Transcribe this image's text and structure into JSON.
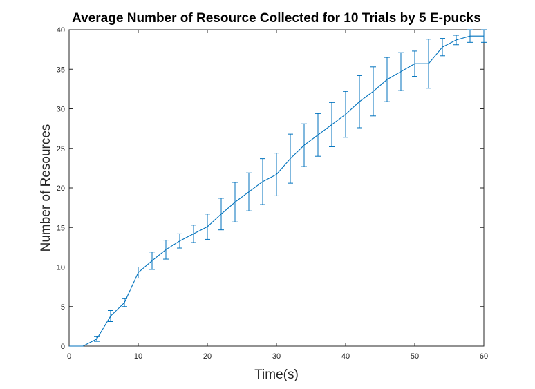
{
  "chart_data": {
    "type": "line",
    "title": "Average Number of Resource Collected for 10 Trials by 5 E-pucks",
    "xlabel": "Time(s)",
    "ylabel": "Number of Resources",
    "xlim": [
      0,
      60
    ],
    "ylim": [
      0,
      40
    ],
    "xticks": [
      0,
      10,
      20,
      30,
      40,
      50,
      60
    ],
    "yticks": [
      0,
      5,
      10,
      15,
      20,
      25,
      30,
      35,
      40
    ],
    "grid": false,
    "error_bars": true,
    "series": [
      {
        "color": "#0072BD",
        "x": [
          0,
          2,
          4,
          6,
          8,
          10,
          12,
          14,
          16,
          18,
          20,
          22,
          24,
          26,
          28,
          30,
          32,
          34,
          36,
          38,
          40,
          42,
          44,
          46,
          48,
          50,
          52,
          54,
          56,
          58,
          60
        ],
        "y": [
          0,
          0,
          0.9,
          3.8,
          5.5,
          9.3,
          10.8,
          12.2,
          13.3,
          14.2,
          15.1,
          16.7,
          18.2,
          19.5,
          20.8,
          21.7,
          23.7,
          25.4,
          26.7,
          28.0,
          29.3,
          30.9,
          32.2,
          33.7,
          34.7,
          35.7,
          35.7,
          37.8,
          38.7,
          39.2,
          39.2
        ],
        "error": [
          0,
          0,
          0.3,
          0.7,
          0.5,
          0.7,
          1.1,
          1.2,
          0.9,
          1.1,
          1.6,
          2.0,
          2.5,
          2.4,
          2.9,
          2.7,
          3.1,
          2.7,
          2.7,
          2.8,
          2.9,
          3.3,
          3.1,
          2.8,
          2.4,
          1.6,
          3.1,
          1.1,
          0.6,
          0.8,
          0.8
        ]
      }
    ]
  }
}
